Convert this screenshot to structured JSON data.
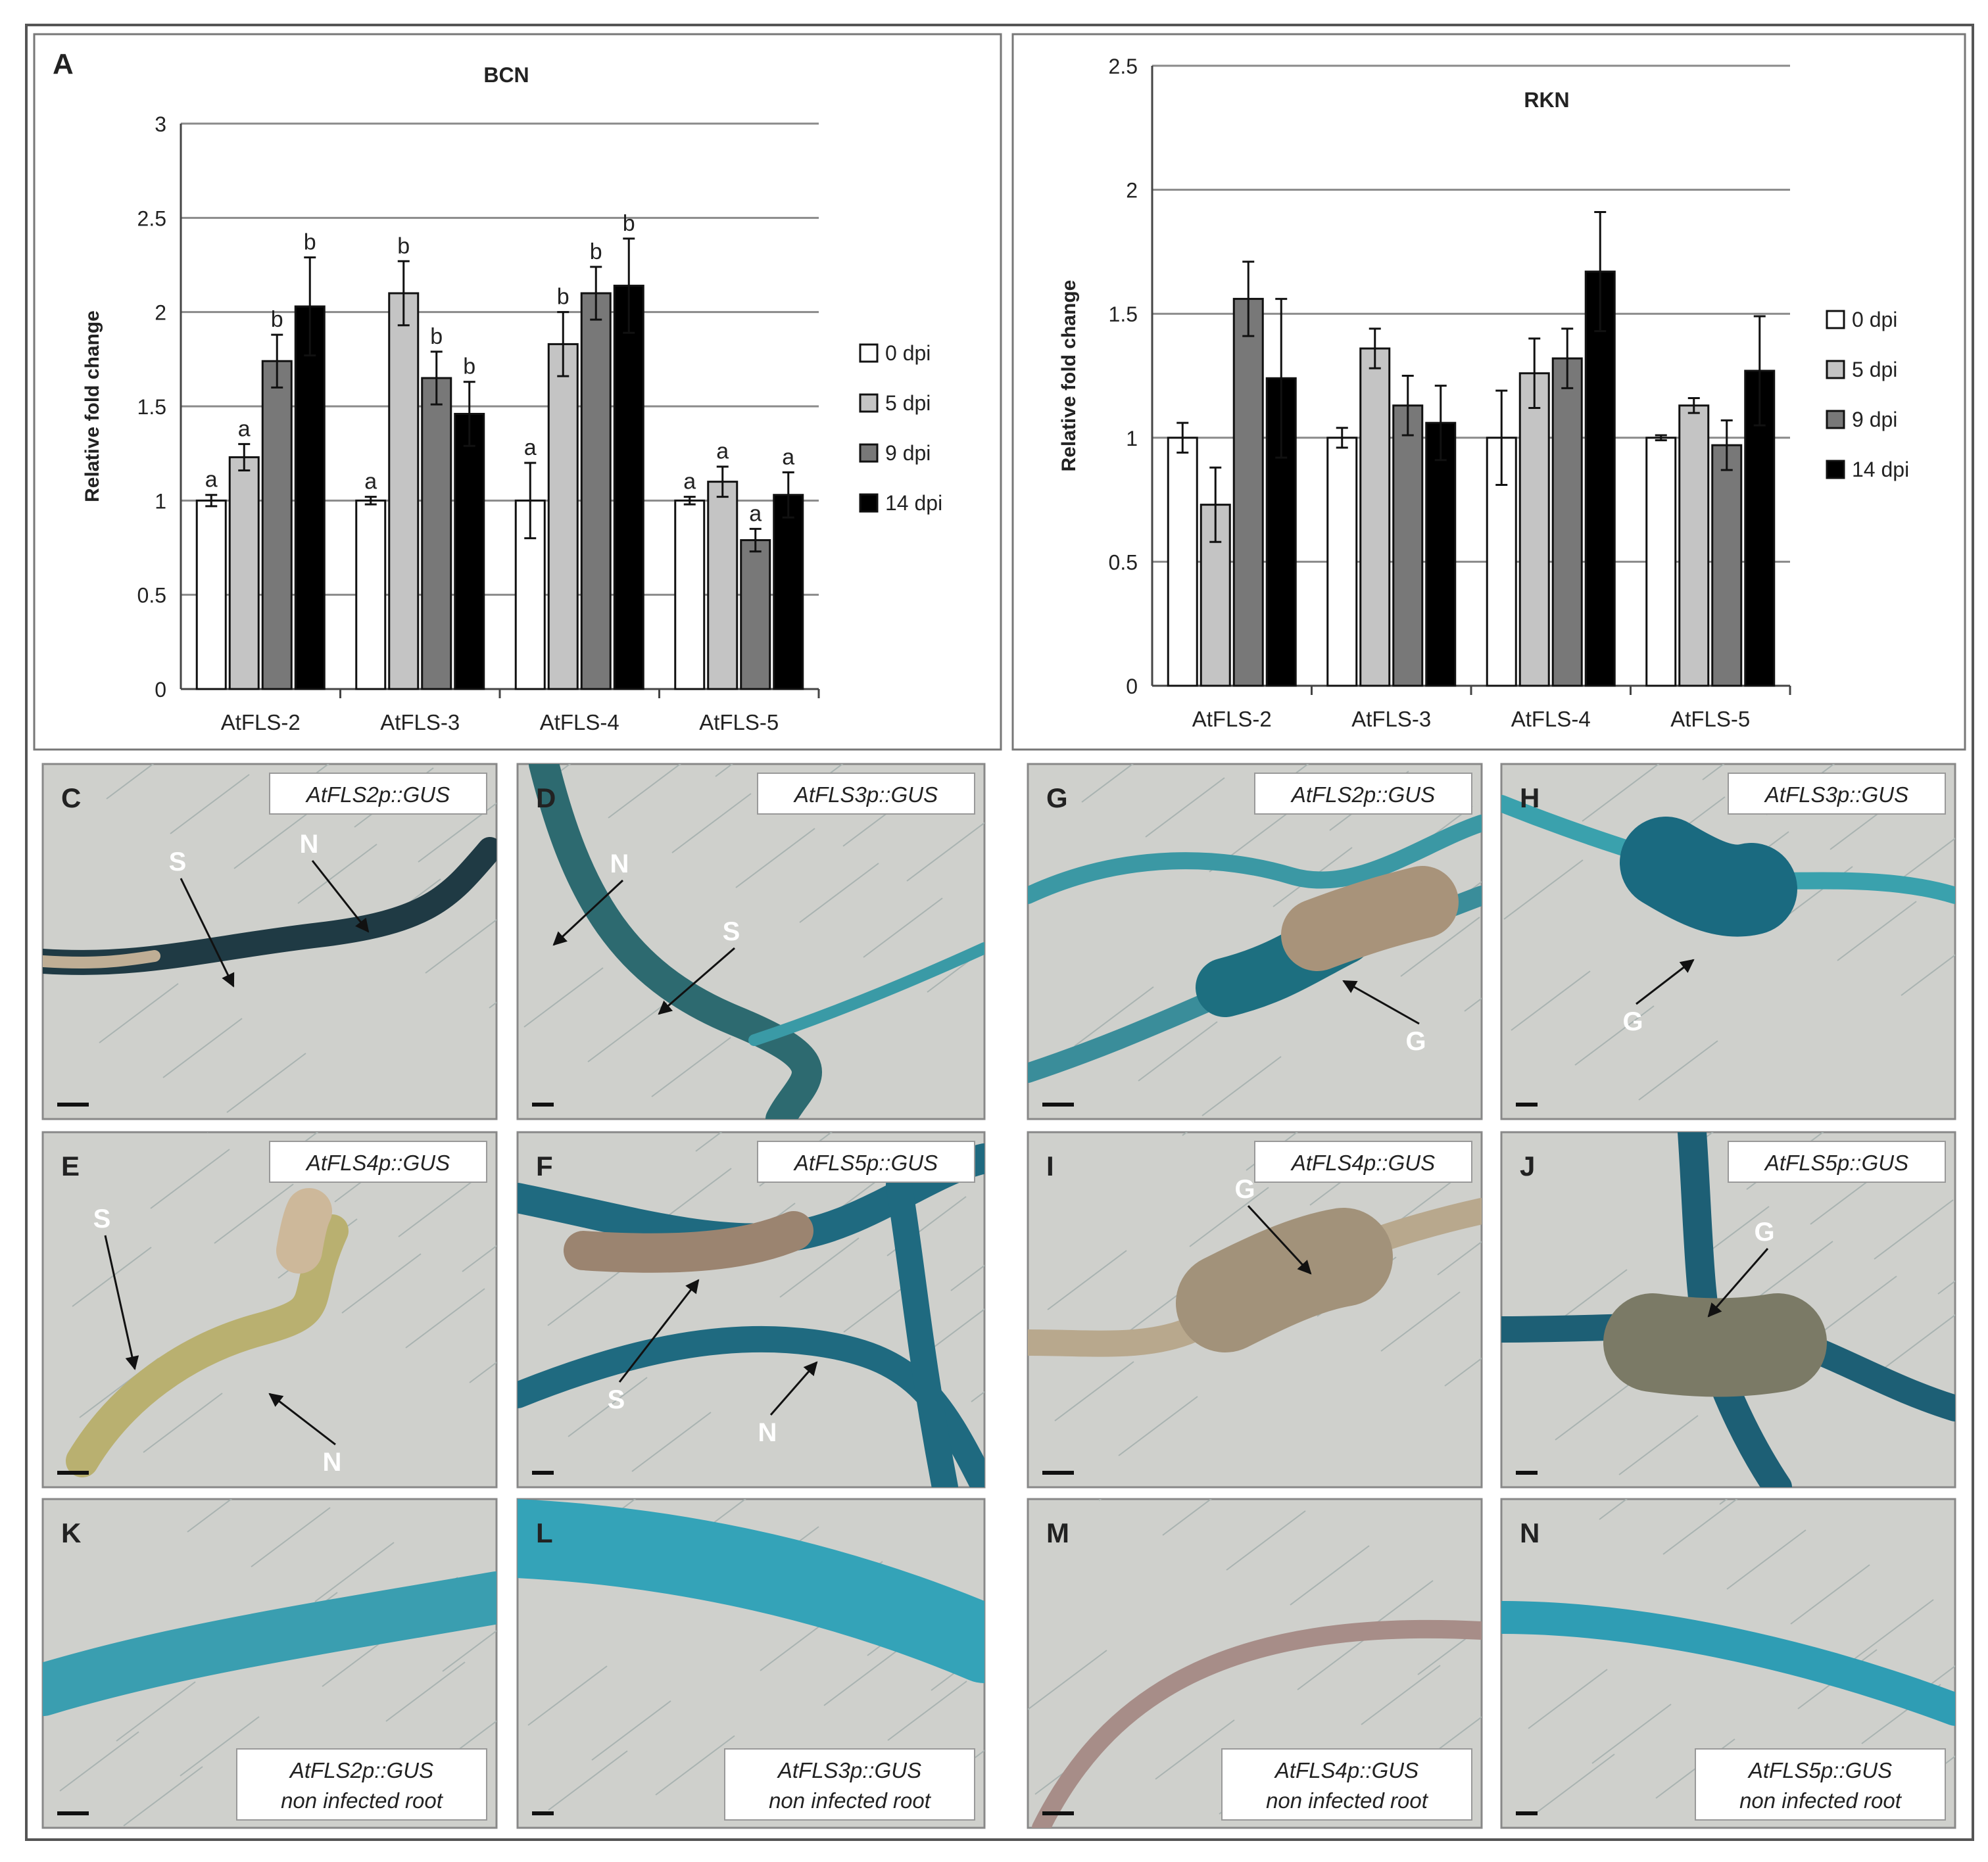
{
  "figure": {
    "panel_a_label": "A",
    "colors": {
      "dpi0": "#ffffff",
      "dpi5": "#c4c4c4",
      "dpi9": "#787878",
      "dpi14": "#000000"
    }
  },
  "chart_data": [
    {
      "type": "bar",
      "title": "BCN",
      "ylabel": "Relative fold change",
      "xlabel": "",
      "ylim": [
        0,
        3
      ],
      "yticks": [
        "0",
        "0.5",
        "1",
        "1.5",
        "2",
        "2.5",
        "3"
      ],
      "categories": [
        "AtFLS-2",
        "AtFLS-3",
        "AtFLS-4",
        "AtFLS-5"
      ],
      "legend": [
        "0 dpi",
        "5 dpi",
        "9 dpi",
        "14 dpi"
      ],
      "legend_position": "right",
      "grid": true,
      "series": [
        {
          "name": "0 dpi",
          "values": [
            1.0,
            1.0,
            1.0,
            1.0
          ],
          "errors": [
            0.03,
            0.02,
            0.2,
            0.02
          ],
          "labels": [
            "a",
            "a",
            "a",
            "a"
          ]
        },
        {
          "name": "5 dpi",
          "values": [
            1.23,
            2.1,
            1.83,
            1.1
          ],
          "errors": [
            0.07,
            0.17,
            0.17,
            0.08
          ],
          "labels": [
            "a",
            "b",
            "b",
            "a"
          ]
        },
        {
          "name": "9 dpi",
          "values": [
            1.74,
            1.65,
            2.1,
            0.79
          ],
          "errors": [
            0.14,
            0.14,
            0.14,
            0.06
          ],
          "labels": [
            "b",
            "b",
            "b",
            "a"
          ]
        },
        {
          "name": "14 dpi",
          "values": [
            2.03,
            1.46,
            2.14,
            1.03
          ],
          "errors": [
            0.26,
            0.17,
            0.25,
            0.12
          ],
          "labels": [
            "b",
            "b",
            "b",
            "a"
          ]
        }
      ]
    },
    {
      "type": "bar",
      "title": "RKN",
      "ylabel": "Relative fold change",
      "xlabel": "",
      "ylim": [
        0,
        2.5
      ],
      "yticks": [
        "0",
        "0.5",
        "1",
        "1.5",
        "2",
        "2.5"
      ],
      "categories": [
        "AtFLS-2",
        "AtFLS-3",
        "AtFLS-4",
        "AtFLS-5"
      ],
      "legend": [
        "0 dpi",
        "5 dpi",
        "9 dpi",
        "14 dpi"
      ],
      "legend_position": "right",
      "grid": true,
      "series": [
        {
          "name": "0 dpi",
          "values": [
            1.0,
            1.0,
            1.0,
            1.0
          ],
          "errors": [
            0.06,
            0.04,
            0.19,
            0.01
          ]
        },
        {
          "name": "5 dpi",
          "values": [
            0.73,
            1.36,
            1.26,
            1.13
          ],
          "errors": [
            0.15,
            0.08,
            0.14,
            0.03
          ]
        },
        {
          "name": "9 dpi",
          "values": [
            1.56,
            1.13,
            1.32,
            0.97
          ],
          "errors": [
            0.15,
            0.12,
            0.12,
            0.1
          ]
        },
        {
          "name": "14 dpi",
          "values": [
            1.24,
            1.06,
            1.67,
            1.27
          ],
          "errors": [
            0.32,
            0.15,
            0.24,
            0.22
          ]
        }
      ]
    }
  ],
  "micrographs": [
    {
      "id": "C",
      "construct": "AtFLS2p::GUS",
      "arrows": [
        "S",
        "N"
      ]
    },
    {
      "id": "D",
      "construct": "AtFLS3p::GUS",
      "arrows": [
        "N",
        "S"
      ]
    },
    {
      "id": "G",
      "construct": "AtFLS2p::GUS",
      "arrows": [
        "G"
      ]
    },
    {
      "id": "H",
      "construct": "AtFLS3p::GUS",
      "arrows": [
        "G"
      ]
    },
    {
      "id": "E",
      "construct": "AtFLS4p::GUS",
      "arrows": [
        "S",
        "N"
      ]
    },
    {
      "id": "F",
      "construct": "AtFLS5p::GUS",
      "arrows": [
        "S",
        "N"
      ]
    },
    {
      "id": "I",
      "construct": "AtFLS4p::GUS",
      "arrows": [
        "G"
      ]
    },
    {
      "id": "J",
      "construct": "AtFLS5p::GUS",
      "arrows": [
        "G"
      ]
    },
    {
      "id": "K",
      "construct": "AtFLS2p::GUS",
      "caption": "non infected root",
      "arrows": []
    },
    {
      "id": "L",
      "construct": "AtFLS3p::GUS",
      "caption": "non infected root",
      "arrows": []
    },
    {
      "id": "M",
      "construct": "AtFLS4p::GUS",
      "caption": "non infected root",
      "arrows": []
    },
    {
      "id": "N",
      "construct": "AtFLS5p::GUS",
      "caption": "non infected root",
      "arrows": []
    }
  ]
}
